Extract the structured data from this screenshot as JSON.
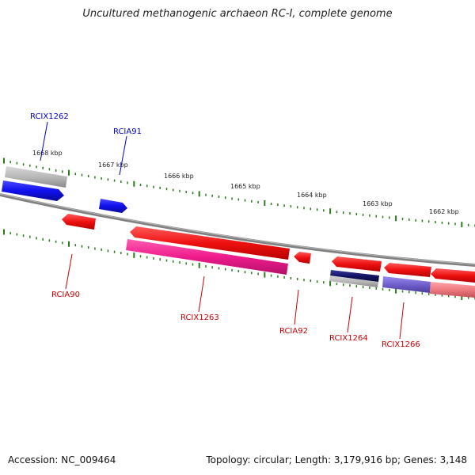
{
  "title": "Uncultured methanogenic archaeon RC-I, complete genome",
  "footer": {
    "accession": "Accession: NC_009464",
    "summary": "Topology: circular; Length: 3,179,916 bp; Genes: 3,148"
  },
  "ruler": {
    "labels": [
      "1668 kbp",
      "1667 kbp",
      "1666 kbp",
      "1665 kbp",
      "1664 kbp",
      "1663 kbp",
      "1662 kbp"
    ]
  },
  "gene_labels": {
    "rcix1262": "RCIX1262",
    "rcia91": "RCIA91",
    "rcia90": "RCIA90",
    "rcix1263": "RCIX1263",
    "rcia92": "RCIA92",
    "rcix1264": "RCIX1264",
    "rcix1266": "RCIX1266"
  },
  "colors": {
    "forward_label": "#0000cc",
    "reverse_label": "#cc0000",
    "backbone": "#888888",
    "tick": "#2a7a1a",
    "gene_blue": "#1a1aee",
    "gene_red": "#ee1111",
    "gene_grey": "#bbbbbb",
    "gene_magenta": "#ee1c8c",
    "gene_navy": "#1a1a6e",
    "gene_purple": "#7060cc",
    "gene_pink": "#ee7a80"
  }
}
